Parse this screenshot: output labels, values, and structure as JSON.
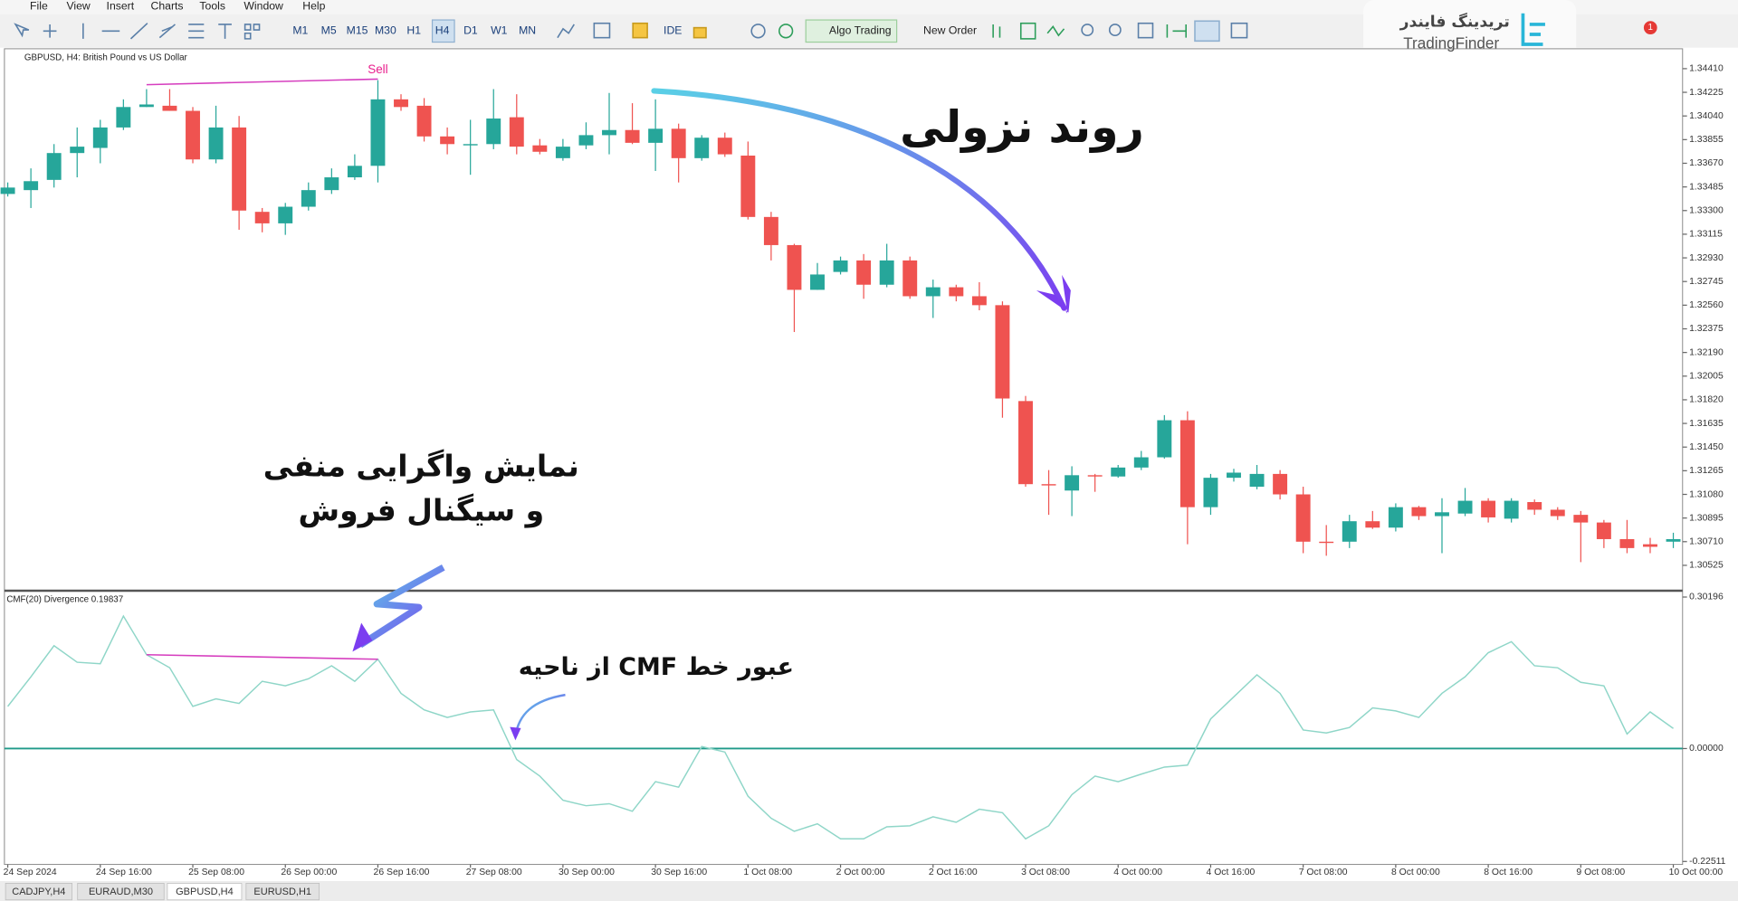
{
  "menu": [
    "File",
    "View",
    "Insert",
    "Charts",
    "Tools",
    "Window",
    "Help"
  ],
  "toolbar": {
    "timeframes": [
      "M1",
      "M5",
      "M15",
      "M30",
      "H1",
      "H4",
      "D1",
      "W1",
      "MN"
    ],
    "ide": "IDE",
    "algo_trading": "Algo Trading",
    "new_order": "New Order",
    "notification_count": "1"
  },
  "logo": {
    "persian": "تریدینگ فایندر",
    "latin": "TradingFinder"
  },
  "annotations": [
    "روند نزولی",
    "نمایش واگرایی منفی",
    "و سیگنال فروش",
    "عبور خط CMF از ناحیه"
  ],
  "tabs": [
    "CADJPY,H4",
    "EURAUD,M30",
    "GBPUSD,H4",
    "EURUSD,H1"
  ],
  "chart_data": [
    {
      "type": "candlestick",
      "title": "GBPUSD, H4: British Pound vs US Dollar",
      "up_color": "#26a69a",
      "down_color": "#ef5350",
      "annotations": [
        "Sell"
      ],
      "categories": [
        "24 Sep 2024",
        null,
        null,
        null,
        "24 Sep 16:00",
        null,
        null,
        null,
        "25 Sep 08:00",
        null,
        null,
        null,
        "26 Sep 00:00",
        null,
        null,
        null,
        "26 Sep 16:00",
        null,
        null,
        null,
        "27 Sep 08:00",
        null,
        null,
        null,
        "30 Sep 00:00",
        null,
        null,
        null,
        "30 Sep 16:00",
        null,
        null,
        null,
        "1 Oct 08:00",
        null,
        null,
        null,
        "2 Oct 00:00",
        null,
        null,
        null,
        "2 Oct 16:00",
        null,
        null,
        null,
        "3 Oct 08:00",
        null,
        null,
        null,
        "4 Oct 00:00",
        null,
        null,
        null,
        "4 Oct 16:00",
        null,
        null,
        null,
        "7 Oct 08:00",
        null,
        null,
        null,
        "8 Oct 00:00",
        null,
        null,
        null,
        "8 Oct 16:00",
        null,
        null,
        null,
        "9 Oct 08:00",
        null,
        null,
        null,
        "10 Oct 00:00"
      ],
      "open": [
        1.3343,
        1.3346,
        1.3354,
        1.3375,
        1.3379,
        1.3395,
        1.3411,
        1.3412,
        1.3408,
        1.337,
        1.3395,
        1.3329,
        1.332,
        1.3333,
        1.3346,
        1.3356,
        1.3365,
        1.3417,
        1.3412,
        1.3388,
        1.3381,
        1.3382,
        1.3403,
        1.3381,
        1.3371,
        1.3381,
        1.3389,
        1.3393,
        1.3383,
        1.3394,
        1.3371,
        1.3387,
        1.3373,
        1.3325,
        1.3303,
        1.3268,
        1.3282,
        1.3291,
        1.3272,
        1.3291,
        1.3263,
        1.327,
        1.3263,
        1.3256,
        1.3181,
        1.3116,
        1.3111,
        1.3123,
        1.3122,
        1.3129,
        1.3137,
        1.3166,
        1.3098,
        1.3121,
        1.3114,
        1.3124,
        1.3108,
        1.3071,
        1.3071,
        1.3087,
        1.3082,
        1.3098,
        1.3091,
        1.3093,
        1.3103,
        1.3089,
        1.3102,
        1.3096,
        1.3092,
        1.3086,
        1.3073,
        1.3069,
        1.3071
      ],
      "high": [
        1.3352,
        1.3363,
        1.3382,
        1.3395,
        1.3401,
        1.3417,
        1.3425,
        1.3425,
        1.3411,
        1.3412,
        1.3404,
        1.3332,
        1.3336,
        1.3352,
        1.3363,
        1.3374,
        1.3432,
        1.3421,
        1.3418,
        1.3395,
        1.3401,
        1.3425,
        1.3421,
        1.3386,
        1.3386,
        1.3399,
        1.3422,
        1.3414,
        1.3417,
        1.3398,
        1.3389,
        1.3391,
        1.3384,
        1.3329,
        1.3304,
        1.3289,
        1.3294,
        1.3296,
        1.3304,
        1.3294,
        1.3276,
        1.3272,
        1.3274,
        1.3259,
        1.3185,
        1.3127,
        1.313,
        1.3124,
        1.3131,
        1.3142,
        1.317,
        1.3173,
        1.3124,
        1.3128,
        1.3131,
        1.3127,
        1.3114,
        1.3084,
        1.3092,
        1.3095,
        1.3101,
        1.3099,
        1.3105,
        1.3113,
        1.3105,
        1.3105,
        1.3104,
        1.3098,
        1.3095,
        1.3088,
        1.3088,
        1.3074,
        1.3078
      ],
      "low": [
        1.3341,
        1.3332,
        1.3348,
        1.3356,
        1.3367,
        1.3393,
        1.3411,
        1.3408,
        1.3367,
        1.3367,
        1.3315,
        1.3313,
        1.3311,
        1.333,
        1.3343,
        1.3354,
        1.3352,
        1.3408,
        1.3384,
        1.3374,
        1.3358,
        1.3378,
        1.3374,
        1.3374,
        1.3369,
        1.3378,
        1.3374,
        1.3382,
        1.3361,
        1.3352,
        1.3369,
        1.3372,
        1.3323,
        1.3291,
        1.3235,
        1.3268,
        1.328,
        1.3261,
        1.327,
        1.3261,
        1.3246,
        1.3259,
        1.3252,
        1.3168,
        1.3114,
        1.3092,
        1.3091,
        1.311,
        1.3121,
        1.3127,
        1.3136,
        1.3069,
        1.3092,
        1.3118,
        1.3112,
        1.3104,
        1.3062,
        1.306,
        1.3066,
        1.3081,
        1.3079,
        1.3088,
        1.3062,
        1.3091,
        1.3086,
        1.3086,
        1.3092,
        1.3088,
        1.3055,
        1.3066,
        1.3062,
        1.3062,
        1.3066
      ],
      "close": [
        1.3348,
        1.3353,
        1.3375,
        1.338,
        1.3395,
        1.3411,
        1.3413,
        1.3408,
        1.337,
        1.3395,
        1.333,
        1.332,
        1.3333,
        1.3346,
        1.3356,
        1.3365,
        1.3417,
        1.3411,
        1.3388,
        1.3382,
        1.3382,
        1.3402,
        1.338,
        1.3376,
        1.338,
        1.3389,
        1.3393,
        1.3383,
        1.3394,
        1.3371,
        1.3387,
        1.3374,
        1.3325,
        1.3303,
        1.3268,
        1.328,
        1.3291,
        1.3272,
        1.3291,
        1.3263,
        1.327,
        1.3263,
        1.3256,
        1.3183,
        1.3116,
        1.3115,
        1.3123,
        1.3122,
        1.3129,
        1.3137,
        1.3166,
        1.3098,
        1.3121,
        1.3125,
        1.3124,
        1.3108,
        1.3071,
        1.307,
        1.3087,
        1.3082,
        1.3098,
        1.3091,
        1.3094,
        1.3103,
        1.309,
        1.3103,
        1.3096,
        1.3091,
        1.3086,
        1.3073,
        1.3066,
        1.3067,
        1.3073
      ],
      "ylim": [
        1.30344,
        1.34557
      ],
      "yticks": [
        {
          "value": 1.3441,
          "label": "1.34410"
        },
        1.34225,
        {
          "value": 1.3404,
          "label": "1.34040"
        },
        1.33855,
        {
          "value": 1.3367,
          "label": "1.33670"
        },
        1.33485,
        {
          "value": 1.333,
          "label": "1.33300"
        },
        1.33115,
        {
          "value": 1.3293,
          "label": "1.32930"
        },
        1.32745,
        {
          "value": 1.3256,
          "label": "1.32560"
        },
        1.32375,
        {
          "value": 1.3219,
          "label": "1.32190"
        },
        1.32005,
        {
          "value": 1.3182,
          "label": "1.31820"
        },
        1.31635,
        {
          "value": 1.3145,
          "label": "1.31450"
        },
        1.31265,
        {
          "value": 1.3108,
          "label": "1.31080"
        },
        1.30895,
        {
          "value": 1.3071,
          "label": "1.30710"
        },
        1.30525
      ]
    },
    {
      "type": "line",
      "title": "CMF(20) Divergence 0.19837",
      "color": "#8fd6c8",
      "level_color": "#1f9a8a",
      "values": [
        0.084,
        0.143,
        0.205,
        0.172,
        0.169,
        0.264,
        0.187,
        0.161,
        0.084,
        0.099,
        0.09,
        0.134,
        0.125,
        0.139,
        0.165,
        0.134,
        0.178,
        0.11,
        0.077,
        0.062,
        0.073,
        0.077,
        -0.022,
        -0.055,
        -0.103,
        -0.114,
        -0.11,
        -0.125,
        -0.066,
        -0.077,
        0.004,
        -0.007,
        -0.095,
        -0.139,
        -0.165,
        -0.15,
        -0.18,
        -0.18,
        -0.156,
        -0.154,
        -0.136,
        -0.147,
        -0.121,
        -0.128,
        -0.18,
        -0.154,
        -0.092,
        -0.055,
        -0.066,
        -0.051,
        -0.037,
        -0.033,
        0.059,
        0.103,
        0.147,
        0.11,
        0.037,
        0.031,
        0.042,
        0.081,
        0.075,
        0.062,
        0.11,
        0.143,
        0.191,
        0.213,
        0.165,
        0.161,
        0.132,
        0.125,
        0.029,
        0.073,
        0.04
      ],
      "ylim": [
        -0.2266,
        0.308
      ],
      "yticks": [
        0.30196,
        {
          "value": 0,
          "label": "0.00000"
        },
        -0.22511
      ]
    }
  ]
}
